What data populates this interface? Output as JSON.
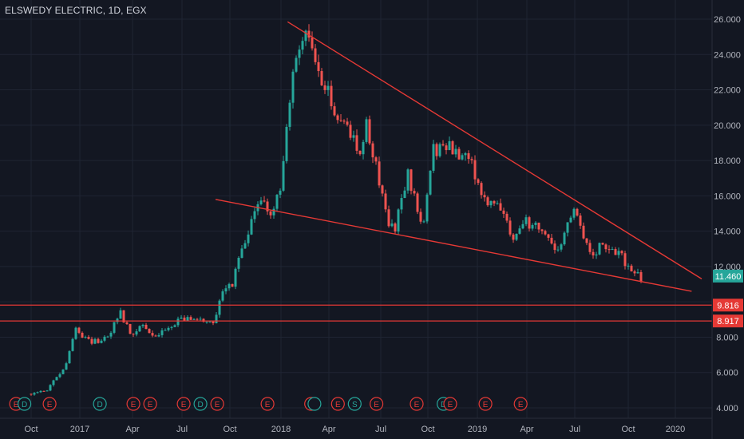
{
  "header": {
    "symbol_title": "ELSWEDY ELECTRIC, 1D, EGX"
  },
  "chart_data": {
    "type": "candlestick",
    "x_tick_labels": [
      "Oct",
      "2017",
      "Apr",
      "Jul",
      "Oct",
      "2018",
      "Apr",
      "Jul",
      "Oct",
      "2019",
      "Apr",
      "Jul",
      "Oct",
      "2020"
    ],
    "y_tick_labels": [
      "4.000",
      "6.000",
      "8.000",
      "10.000",
      "12.000",
      "14.000",
      "16.000",
      "18.000",
      "20.000",
      "22.000",
      "24.000",
      "26.000"
    ],
    "ylim": [
      3.2,
      26.8
    ],
    "price_labels": [
      {
        "text": "11.460",
        "value": 11.46,
        "color": "#26a69a"
      },
      {
        "text": "9.816",
        "value": 9.816,
        "color": "#e53935"
      },
      {
        "text": "8.917",
        "value": 8.917,
        "color": "#e53935"
      }
    ],
    "horizontal_lines": [
      {
        "value": 9.816,
        "color": "#e53935"
      },
      {
        "value": 8.917,
        "color": "#e53935"
      }
    ],
    "trendlines": [
      {
        "name": "upper",
        "from": {
          "month": 15.3,
          "price": 25.85
        },
        "to": {
          "month": 40.0,
          "price": 11.3
        },
        "color": "#e53935"
      },
      {
        "name": "lower",
        "from": {
          "month": 11.0,
          "price": 15.8
        },
        "to": {
          "month": 39.4,
          "price": 10.6
        },
        "color": "#e53935"
      }
    ],
    "close_path": [
      [
        0.0,
        4.8
      ],
      [
        1.0,
        5.1
      ],
      [
        2.0,
        6.2
      ],
      [
        2.6,
        8.5
      ],
      [
        3.0,
        7.9
      ],
      [
        4.0,
        7.7
      ],
      [
        4.8,
        8.4
      ],
      [
        5.3,
        9.4
      ],
      [
        6.0,
        8.0
      ],
      [
        6.7,
        8.7
      ],
      [
        7.3,
        8.0
      ],
      [
        8.0,
        8.4
      ],
      [
        9.0,
        9.0
      ],
      [
        10.0,
        9.1
      ],
      [
        10.6,
        8.6
      ],
      [
        11.0,
        9.2
      ],
      [
        11.5,
        10.6
      ],
      [
        12.0,
        11.0
      ],
      [
        12.5,
        12.8
      ],
      [
        13.0,
        14.0
      ],
      [
        13.5,
        15.4
      ],
      [
        14.0,
        15.7
      ],
      [
        14.4,
        14.7
      ],
      [
        15.0,
        17.2
      ],
      [
        15.5,
        22.0
      ],
      [
        16.0,
        24.6
      ],
      [
        16.5,
        25.2
      ],
      [
        17.0,
        23.5
      ],
      [
        17.5,
        22.3
      ],
      [
        18.0,
        21.0
      ],
      [
        19.0,
        19.8
      ],
      [
        19.6,
        18.6
      ],
      [
        20.0,
        20.0
      ],
      [
        20.7,
        17.2
      ],
      [
        21.3,
        14.5
      ],
      [
        21.7,
        14.2
      ],
      [
        22.5,
        17.2
      ],
      [
        23.4,
        14.2
      ],
      [
        24.0,
        18.6
      ],
      [
        25.0,
        18.9
      ],
      [
        25.8,
        18.1
      ],
      [
        26.3,
        17.7
      ],
      [
        27.0,
        15.9
      ],
      [
        28.0,
        15.2
      ],
      [
        28.8,
        13.3
      ],
      [
        29.5,
        14.5
      ],
      [
        30.5,
        14.2
      ],
      [
        31.3,
        12.6
      ],
      [
        32.0,
        14.6
      ],
      [
        32.5,
        15.1
      ],
      [
        33.0,
        13.5
      ],
      [
        33.5,
        12.3
      ],
      [
        34.0,
        13.4
      ],
      [
        34.6,
        13.0
      ],
      [
        35.0,
        12.9
      ],
      [
        35.6,
        11.9
      ],
      [
        36.0,
        11.7
      ],
      [
        36.5,
        11.3
      ]
    ],
    "events": [
      {
        "letter": "E",
        "color": "#e53935",
        "month": -0.9
      },
      {
        "letter": "D",
        "color": "#26a69a",
        "month": -0.4
      },
      {
        "letter": "E",
        "color": "#e53935",
        "month": 1.1
      },
      {
        "letter": "D",
        "color": "#26a69a",
        "month": 4.1
      },
      {
        "letter": "E",
        "color": "#e53935",
        "month": 6.1
      },
      {
        "letter": "E",
        "color": "#e53935",
        "month": 7.1
      },
      {
        "letter": "E",
        "color": "#e53935",
        "month": 9.1
      },
      {
        "letter": "D",
        "color": "#26a69a",
        "month": 10.1
      },
      {
        "letter": "E",
        "color": "#e53935",
        "month": 11.1
      },
      {
        "letter": "E",
        "color": "#e53935",
        "month": 14.1
      },
      {
        "letter": "E",
        "color": "#e53935",
        "month": 16.7
      },
      {
        "letter": "",
        "color": "#26a69a",
        "month": 16.9
      },
      {
        "letter": "E",
        "color": "#e53935",
        "month": 18.3
      },
      {
        "letter": "S",
        "color": "#26a69a",
        "month": 19.3
      },
      {
        "letter": "E",
        "color": "#e53935",
        "month": 20.6
      },
      {
        "letter": "E",
        "color": "#e53935",
        "month": 23.0
      },
      {
        "letter": "D",
        "color": "#26a69a",
        "month": 24.6
      },
      {
        "letter": "E",
        "color": "#e53935",
        "month": 25.0
      },
      {
        "letter": "E",
        "color": "#e53935",
        "month": 27.1
      },
      {
        "letter": "E",
        "color": "#e53935",
        "month": 29.2
      }
    ],
    "colors": {
      "background": "#131722",
      "grid": "#1f2433",
      "axis_text": "#b2b5be",
      "up": "#26a69a",
      "down": "#ef5350",
      "trendline": "#e53935"
    }
  }
}
